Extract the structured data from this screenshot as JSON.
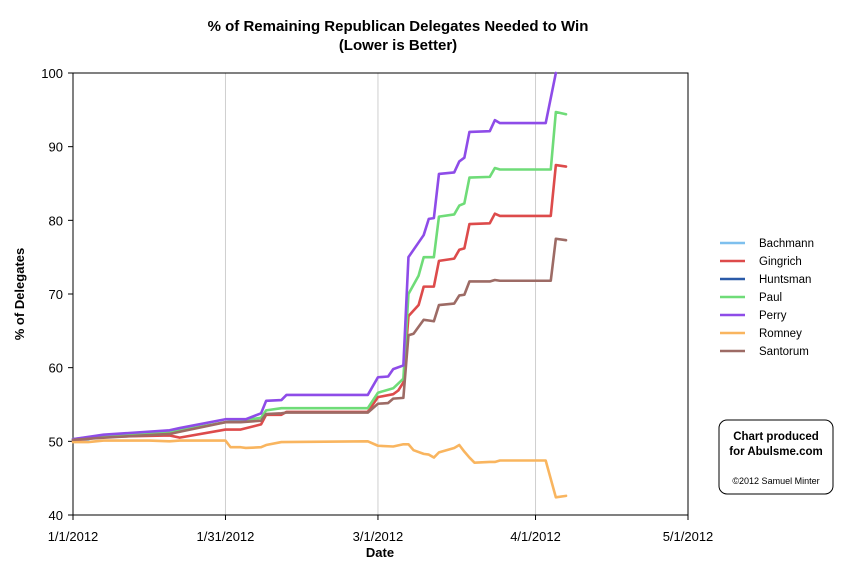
{
  "chart_data": {
    "type": "line",
    "title": "% of Remaining Republican Delegates Needed to Win",
    "subtitle": "(Lower is Better)",
    "xlabel": "Date",
    "ylabel": "% of Delegates",
    "x_ticks": [
      "1/1/2012",
      "1/31/2012",
      "3/1/2012",
      "4/1/2012",
      "5/1/2012"
    ],
    "x_range": [
      "1/1/2012",
      "5/1/2012"
    ],
    "y_ticks": [
      40,
      50,
      60,
      70,
      80,
      90,
      100
    ],
    "ylim": [
      40,
      100
    ],
    "grid": "vertical gridlines at each date tick",
    "legend_position": "right",
    "series": [
      {
        "name": "Bachmann",
        "color": "#7ec0ee",
        "points": [
          [
            "1/1/2012",
            50.1
          ],
          [
            "1/4/2012",
            50.1
          ]
        ]
      },
      {
        "name": "Gingrich",
        "color": "#dd4b4b",
        "points": [
          [
            "1/1/2012",
            50.1
          ],
          [
            "1/7/2012",
            50.6
          ],
          [
            "1/20/2012",
            50.8
          ],
          [
            "1/22/2012",
            50.5
          ],
          [
            "1/31/2012",
            51.6
          ],
          [
            "2/3/2012",
            51.6
          ],
          [
            "2/7/2012",
            52.3
          ],
          [
            "2/8/2012",
            53.6
          ],
          [
            "2/11/2012",
            53.6
          ],
          [
            "2/12/2012",
            54.0
          ],
          [
            "2/28/2012",
            54.0
          ],
          [
            "3/1/2012",
            56.0
          ],
          [
            "3/4/2012",
            56.4
          ],
          [
            "3/5/2012",
            56.9
          ],
          [
            "3/6/2012",
            58.0
          ],
          [
            "3/7/2012",
            67.0
          ],
          [
            "3/9/2012",
            68.5
          ],
          [
            "3/10/2012",
            71.0
          ],
          [
            "3/12/2012",
            71.0
          ],
          [
            "3/13/2012",
            74.5
          ],
          [
            "3/16/2012",
            74.8
          ],
          [
            "3/17/2012",
            76.0
          ],
          [
            "3/18/2012",
            76.2
          ],
          [
            "3/19/2012",
            79.5
          ],
          [
            "3/23/2012",
            79.6
          ],
          [
            "3/24/2012",
            80.9
          ],
          [
            "3/25/2012",
            80.6
          ],
          [
            "4/1/2012",
            80.6
          ],
          [
            "4/4/2012",
            80.6
          ],
          [
            "4/5/2012",
            87.5
          ],
          [
            "4/7/2012",
            87.3
          ]
        ]
      },
      {
        "name": "Huntsman",
        "color": "#2a5aa8",
        "points": [
          [
            "1/1/2012",
            50.3
          ],
          [
            "1/4/2012",
            50.4
          ],
          [
            "1/7/2012",
            50.8
          ],
          [
            "1/11/2012",
            50.9
          ],
          [
            "1/16/2012",
            50.9
          ]
        ]
      },
      {
        "name": "Paul",
        "color": "#6fdc78",
        "points": [
          [
            "1/1/2012",
            50.3
          ],
          [
            "1/7/2012",
            50.8
          ],
          [
            "1/20/2012",
            51.2
          ],
          [
            "1/22/2012",
            51.5
          ],
          [
            "1/31/2012",
            52.6
          ],
          [
            "2/3/2012",
            52.8
          ],
          [
            "2/7/2012",
            53.2
          ],
          [
            "2/8/2012",
            54.2
          ],
          [
            "2/11/2012",
            54.5
          ],
          [
            "2/28/2012",
            54.5
          ],
          [
            "3/1/2012",
            56.6
          ],
          [
            "3/4/2012",
            57.2
          ],
          [
            "3/6/2012",
            58.5
          ],
          [
            "3/7/2012",
            70.0
          ],
          [
            "3/9/2012",
            72.5
          ],
          [
            "3/10/2012",
            75.0
          ],
          [
            "3/12/2012",
            75.0
          ],
          [
            "3/13/2012",
            80.5
          ],
          [
            "3/16/2012",
            80.8
          ],
          [
            "3/17/2012",
            82.0
          ],
          [
            "3/18/2012",
            82.3
          ],
          [
            "3/19/2012",
            85.8
          ],
          [
            "3/23/2012",
            85.9
          ],
          [
            "3/24/2012",
            87.1
          ],
          [
            "3/25/2012",
            86.9
          ],
          [
            "4/1/2012",
            86.9
          ],
          [
            "4/4/2012",
            86.9
          ],
          [
            "4/5/2012",
            94.7
          ],
          [
            "4/7/2012",
            94.4
          ]
        ]
      },
      {
        "name": "Perry",
        "color": "#8e4ce8",
        "points": [
          [
            "1/1/2012",
            50.3
          ],
          [
            "1/7/2012",
            50.9
          ],
          [
            "1/20/2012",
            51.5
          ],
          [
            "1/22/2012",
            51.8
          ],
          [
            "1/31/2012",
            53.0
          ],
          [
            "2/4/2012",
            53.0
          ],
          [
            "2/7/2012",
            53.8
          ],
          [
            "2/8/2012",
            55.5
          ],
          [
            "2/11/2012",
            55.6
          ],
          [
            "2/12/2012",
            56.3
          ],
          [
            "2/28/2012",
            56.3
          ],
          [
            "3/1/2012",
            58.7
          ],
          [
            "3/3/2012",
            58.8
          ],
          [
            "3/4/2012",
            59.8
          ],
          [
            "3/6/2012",
            60.3
          ],
          [
            "3/7/2012",
            75.0
          ],
          [
            "3/9/2012",
            77.0
          ],
          [
            "3/10/2012",
            78.0
          ],
          [
            "3/11/2012",
            80.2
          ],
          [
            "3/12/2012",
            80.3
          ],
          [
            "3/13/2012",
            86.3
          ],
          [
            "3/16/2012",
            86.5
          ],
          [
            "3/17/2012",
            88.0
          ],
          [
            "3/18/2012",
            88.5
          ],
          [
            "3/19/2012",
            92.0
          ],
          [
            "3/23/2012",
            92.1
          ],
          [
            "3/24/2012",
            93.6
          ],
          [
            "3/25/2012",
            93.2
          ],
          [
            "4/1/2012",
            93.2
          ],
          [
            "4/3/2012",
            93.2
          ],
          [
            "4/5/2012",
            100.0
          ]
        ]
      },
      {
        "name": "Romney",
        "color": "#f9b55f",
        "points": [
          [
            "1/1/2012",
            49.9
          ],
          [
            "1/4/2012",
            49.9
          ],
          [
            "1/7/2012",
            50.1
          ],
          [
            "1/16/2012",
            50.1
          ],
          [
            "1/20/2012",
            50.0
          ],
          [
            "1/22/2012",
            50.1
          ],
          [
            "1/31/2012",
            50.1
          ],
          [
            "2/1/2012",
            49.2
          ],
          [
            "2/3/2012",
            49.2
          ],
          [
            "2/4/2012",
            49.1
          ],
          [
            "2/7/2012",
            49.2
          ],
          [
            "2/8/2012",
            49.5
          ],
          [
            "2/11/2012",
            49.9
          ],
          [
            "2/28/2012",
            50.0
          ],
          [
            "3/1/2012",
            49.4
          ],
          [
            "3/4/2012",
            49.3
          ],
          [
            "3/6/2012",
            49.6
          ],
          [
            "3/7/2012",
            49.6
          ],
          [
            "3/8/2012",
            48.8
          ],
          [
            "3/10/2012",
            48.3
          ],
          [
            "3/11/2012",
            48.2
          ],
          [
            "3/12/2012",
            47.8
          ],
          [
            "3/13/2012",
            48.5
          ],
          [
            "3/16/2012",
            49.1
          ],
          [
            "3/17/2012",
            49.5
          ],
          [
            "3/18/2012",
            48.6
          ],
          [
            "3/19/2012",
            47.8
          ],
          [
            "3/20/2012",
            47.1
          ],
          [
            "3/23/2012",
            47.2
          ],
          [
            "3/24/2012",
            47.2
          ],
          [
            "3/25/2012",
            47.4
          ],
          [
            "4/1/2012",
            47.4
          ],
          [
            "4/3/2012",
            47.4
          ],
          [
            "4/5/2012",
            42.4
          ],
          [
            "4/7/2012",
            42.6
          ]
        ]
      },
      {
        "name": "Santorum",
        "color": "#9d6b65",
        "points": [
          [
            "1/1/2012",
            50.2
          ],
          [
            "1/7/2012",
            50.5
          ],
          [
            "1/20/2012",
            51.0
          ],
          [
            "1/22/2012",
            51.3
          ],
          [
            "1/31/2012",
            52.6
          ],
          [
            "2/3/2012",
            52.6
          ],
          [
            "2/7/2012",
            52.8
          ],
          [
            "2/8/2012",
            53.7
          ],
          [
            "2/11/2012",
            53.8
          ],
          [
            "2/12/2012",
            53.9
          ],
          [
            "2/28/2012",
            53.9
          ],
          [
            "3/1/2012",
            55.1
          ],
          [
            "3/3/2012",
            55.2
          ],
          [
            "3/4/2012",
            55.8
          ],
          [
            "3/6/2012",
            55.9
          ],
          [
            "3/7/2012",
            64.4
          ],
          [
            "3/8/2012",
            64.6
          ],
          [
            "3/10/2012",
            66.5
          ],
          [
            "3/11/2012",
            66.4
          ],
          [
            "3/12/2012",
            66.3
          ],
          [
            "3/13/2012",
            68.5
          ],
          [
            "3/16/2012",
            68.7
          ],
          [
            "3/17/2012",
            69.8
          ],
          [
            "3/18/2012",
            69.9
          ],
          [
            "3/19/2012",
            71.7
          ],
          [
            "3/23/2012",
            71.7
          ],
          [
            "3/24/2012",
            71.9
          ],
          [
            "3/25/2012",
            71.8
          ],
          [
            "4/1/2012",
            71.8
          ],
          [
            "4/4/2012",
            71.8
          ],
          [
            "4/5/2012",
            77.5
          ],
          [
            "4/7/2012",
            77.3
          ]
        ]
      }
    ]
  },
  "credit": {
    "line1": "Chart produced",
    "line2": "for Abulsme.com",
    "line3": "©2012 Samuel Minter"
  }
}
